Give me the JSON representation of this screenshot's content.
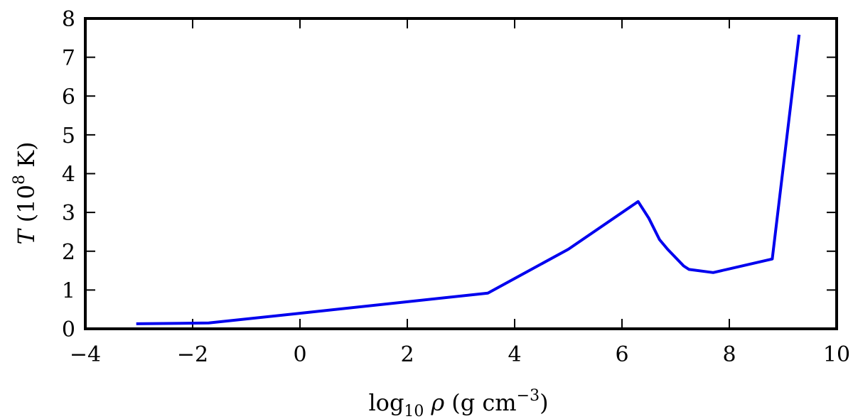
{
  "chart_data": {
    "type": "line",
    "xlabel": {
      "prefix": "log",
      "sub": "10",
      "symbol": "ρ",
      "units_open": "(g cm",
      "units_sup": "−3",
      "units_close": ")"
    },
    "ylabel": {
      "symbol": "T",
      "units_open": "(10",
      "units_sup": "8",
      "units_close": " K)"
    },
    "xlim": [
      -4,
      10
    ],
    "ylim": [
      0,
      8
    ],
    "xticks": [
      -4,
      -2,
      0,
      2,
      4,
      6,
      8,
      10
    ],
    "xtick_labels": [
      "−4",
      "−2",
      "0",
      "2",
      "4",
      "6",
      "8",
      "10"
    ],
    "yticks": [
      0,
      1,
      2,
      3,
      4,
      5,
      6,
      7,
      8
    ],
    "ytick_labels": [
      "0",
      "1",
      "2",
      "3",
      "4",
      "5",
      "6",
      "7",
      "8"
    ],
    "grid": false,
    "series": [
      {
        "color": "#0000ee",
        "x": [
          -3.05,
          -1.7,
          0.0,
          3.5,
          5.0,
          6.3,
          6.5,
          6.7,
          6.85,
          7.15,
          7.25,
          7.7,
          8.8,
          9.3
        ],
        "y": [
          0.13,
          0.15,
          0.4,
          0.92,
          2.05,
          3.28,
          2.85,
          2.3,
          2.05,
          1.62,
          1.53,
          1.45,
          1.8,
          7.58
        ]
      }
    ]
  }
}
